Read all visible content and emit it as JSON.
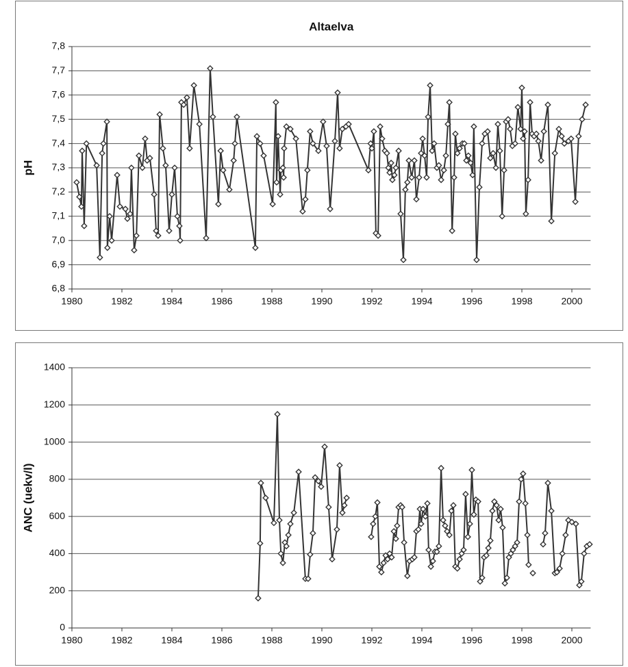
{
  "chart_data": [
    {
      "type": "line",
      "title": "Altaelva",
      "ylabel": "pH",
      "color": "#333333",
      "grid": true,
      "xlim": [
        1980,
        2000.75
      ],
      "xticks": [
        1980,
        1982,
        1984,
        1986,
        1988,
        1990,
        1992,
        1994,
        1996,
        1998,
        2000
      ],
      "ylim": [
        6.8,
        7.8
      ],
      "yticks": [
        {
          "value": 6.8,
          "label": "6,8"
        },
        {
          "value": 6.9,
          "label": "6,9"
        },
        {
          "value": 7.0,
          "label": "7,0"
        },
        {
          "value": 7.1,
          "label": "7,1"
        },
        {
          "value": 7.2,
          "label": "7,2"
        },
        {
          "value": 7.3,
          "label": "7,3"
        },
        {
          "value": 7.4,
          "label": "7,4"
        },
        {
          "value": 7.5,
          "label": "7,5"
        },
        {
          "value": 7.6,
          "label": "7,6"
        },
        {
          "value": 7.7,
          "label": "7,7"
        },
        {
          "value": 7.8,
          "label": "7,8"
        }
      ],
      "x": [
        1980.19,
        1980.3,
        1980.38,
        1980.41,
        1980.49,
        1980.58,
        1980.99,
        1981.12,
        1981.21,
        1981.26,
        1981.4,
        1981.42,
        1981.51,
        1981.59,
        1981.81,
        1981.92,
        1982.14,
        1982.22,
        1982.33,
        1982.38,
        1982.49,
        1982.58,
        1982.68,
        1982.82,
        1982.93,
        1983.01,
        1983.12,
        1983.29,
        1983.37,
        1983.45,
        1983.51,
        1983.64,
        1983.75,
        1983.89,
        1984.0,
        1984.11,
        1984.22,
        1984.3,
        1984.33,
        1984.38,
        1984.47,
        1984.6,
        1984.71,
        1984.88,
        1985.1,
        1985.37,
        1985.53,
        1985.64,
        1985.86,
        1985.95,
        1986.05,
        1986.3,
        1986.47,
        1986.52,
        1986.6,
        1987.34,
        1987.4,
        1987.53,
        1987.67,
        1988.03,
        1988.16,
        1988.19,
        1988.25,
        1988.33,
        1988.36,
        1988.44,
        1988.47,
        1988.49,
        1988.58,
        1988.74,
        1988.96,
        1989.23,
        1989.34,
        1989.42,
        1989.53,
        1989.64,
        1989.86,
        1990.05,
        1990.19,
        1990.33,
        1990.52,
        1990.63,
        1990.71,
        1990.82,
        1990.96,
        1991.07,
        1991.86,
        1991.95,
        1992.0,
        1992.08,
        1992.16,
        1992.25,
        1992.33,
        1992.41,
        1992.52,
        1992.6,
        1992.66,
        1992.71,
        1992.77,
        1992.82,
        1992.9,
        1992.96,
        1993.07,
        1993.15,
        1993.26,
        1993.34,
        1993.42,
        1993.48,
        1993.59,
        1993.7,
        1993.78,
        1993.89,
        1993.97,
        1994.03,
        1994.11,
        1994.19,
        1994.25,
        1994.33,
        1994.41,
        1994.49,
        1994.6,
        1994.68,
        1994.77,
        1994.88,
        1994.96,
        1995.04,
        1995.1,
        1995.21,
        1995.29,
        1995.34,
        1995.42,
        1995.51,
        1995.62,
        1995.7,
        1995.78,
        1995.86,
        1995.95,
        1996.03,
        1996.08,
        1996.19,
        1996.3,
        1996.41,
        1996.52,
        1996.63,
        1996.74,
        1996.85,
        1996.96,
        1997.04,
        1997.12,
        1997.21,
        1997.29,
        1997.37,
        1997.45,
        1997.53,
        1997.62,
        1997.73,
        1997.84,
        1997.95,
        1998.0,
        1998.05,
        1998.11,
        1998.16,
        1998.25,
        1998.33,
        1998.41,
        1998.49,
        1998.58,
        1998.66,
        1998.77,
        1998.88,
        1999.04,
        1999.18,
        1999.32,
        1999.48,
        1999.59,
        1999.7,
        1999.86,
        1999.97,
        2000.14,
        2000.27,
        2000.41,
        2000.55
      ],
      "values": [
        7.24,
        7.18,
        7.14,
        7.37,
        7.06,
        7.4,
        7.31,
        6.93,
        7.36,
        7.4,
        7.49,
        6.97,
        7.1,
        7.0,
        7.27,
        7.14,
        7.13,
        7.09,
        7.11,
        7.3,
        6.96,
        7.02,
        7.35,
        7.3,
        7.42,
        7.33,
        7.34,
        7.19,
        7.04,
        7.02,
        7.52,
        7.38,
        7.31,
        7.04,
        7.19,
        7.3,
        7.1,
        7.06,
        7.0,
        7.57,
        7.56,
        7.59,
        7.38,
        7.64,
        7.48,
        7.01,
        7.71,
        7.51,
        7.15,
        7.37,
        7.29,
        7.21,
        7.33,
        7.4,
        7.51,
        6.97,
        7.43,
        7.4,
        7.35,
        7.15,
        7.57,
        7.24,
        7.43,
        7.19,
        7.29,
        7.3,
        7.26,
        7.38,
        7.47,
        7.46,
        7.42,
        7.12,
        7.17,
        7.29,
        7.45,
        7.4,
        7.37,
        7.49,
        7.39,
        7.13,
        7.41,
        7.61,
        7.38,
        7.46,
        7.47,
        7.48,
        7.29,
        7.4,
        7.38,
        7.45,
        7.03,
        7.02,
        7.47,
        7.42,
        7.37,
        7.36,
        7.3,
        7.28,
        7.32,
        7.25,
        7.27,
        7.3,
        7.37,
        7.11,
        6.92,
        7.21,
        7.24,
        7.33,
        7.26,
        7.33,
        7.17,
        7.26,
        7.36,
        7.42,
        7.35,
        7.26,
        7.51,
        7.64,
        7.37,
        7.4,
        7.3,
        7.31,
        7.25,
        7.29,
        7.35,
        7.48,
        7.57,
        7.04,
        7.26,
        7.44,
        7.36,
        7.38,
        7.4,
        7.4,
        7.33,
        7.35,
        7.32,
        7.27,
        7.47,
        6.92,
        7.22,
        7.4,
        7.44,
        7.45,
        7.34,
        7.36,
        7.3,
        7.48,
        7.37,
        7.1,
        7.29,
        7.49,
        7.5,
        7.46,
        7.39,
        7.4,
        7.55,
        7.46,
        7.63,
        7.42,
        7.45,
        7.11,
        7.25,
        7.57,
        7.44,
        7.43,
        7.44,
        7.41,
        7.33,
        7.45,
        7.56,
        7.08,
        7.36,
        7.46,
        7.43,
        7.4,
        7.41,
        7.42,
        7.16,
        7.43,
        7.5,
        7.56
      ]
    },
    {
      "type": "line",
      "ylabel": "ANC (uekv/l)",
      "color": "#333333",
      "grid": true,
      "xlim": [
        1980,
        2000.75
      ],
      "xticks": [
        1980,
        1982,
        1984,
        1986,
        1988,
        1990,
        1992,
        1994,
        1996,
        1998,
        2000
      ],
      "ylim": [
        0,
        1400
      ],
      "yticks": [
        0,
        200,
        400,
        600,
        800,
        1000,
        1200,
        1400
      ],
      "x": [
        1987.45,
        1987.53,
        1987.56,
        1987.75,
        1988.08,
        1988.22,
        1988.3,
        1988.36,
        1988.44,
        1988.52,
        1988.58,
        1988.66,
        1988.74,
        1988.88,
        1989.07,
        1989.34,
        1989.45,
        1989.53,
        1989.64,
        1989.73,
        1989.86,
        1989.97,
        1990.11,
        1990.27,
        1990.41,
        1990.6,
        1990.71,
        1990.82,
        1990.9,
        1990.99,
        null,
        1991.97,
        1992.05,
        1992.14,
        1992.22,
        1992.3,
        1992.38,
        1992.47,
        1992.55,
        1992.63,
        1992.71,
        1992.79,
        1992.88,
        1992.96,
        1993.01,
        1993.07,
        1993.15,
        1993.21,
        1993.29,
        1993.42,
        1993.51,
        1993.62,
        1993.7,
        1993.78,
        1993.86,
        1993.92,
        1993.97,
        1994.05,
        1994.14,
        1994.22,
        1994.27,
        1994.36,
        1994.44,
        1994.52,
        1994.6,
        1994.68,
        1994.77,
        1994.85,
        1994.93,
        1995.01,
        1995.1,
        1995.18,
        1995.26,
        1995.34,
        1995.42,
        1995.51,
        1995.59,
        1995.67,
        1995.75,
        1995.84,
        1995.92,
        1996.0,
        1996.08,
        1996.16,
        1996.25,
        1996.33,
        1996.41,
        1996.49,
        1996.58,
        1996.66,
        1996.74,
        1996.82,
        1996.9,
        1996.99,
        1997.07,
        1997.15,
        1997.23,
        1997.32,
        1997.4,
        1997.48,
        1997.56,
        1997.64,
        1997.73,
        1997.81,
        1997.89,
        1997.97,
        1998.05,
        1998.14,
        1998.22,
        1998.27,
        null,
        1998.44,
        null,
        1998.85,
        1998.93,
        1999.04,
        1999.18,
        1999.32,
        1999.4,
        1999.51,
        1999.62,
        1999.75,
        1999.86,
        2000.0,
        2000.16,
        2000.3,
        2000.38,
        2000.49,
        2000.6,
        2000.71
      ],
      "values": [
        160,
        455,
        780,
        700,
        565,
        1150,
        580,
        400,
        350,
        460,
        440,
        500,
        560,
        620,
        840,
        265,
        265,
        395,
        510,
        810,
        790,
        760,
        975,
        650,
        370,
        530,
        875,
        620,
        660,
        700,
        null,
        490,
        560,
        600,
        675,
        330,
        300,
        350,
        390,
        370,
        400,
        380,
        520,
        480,
        550,
        650,
        660,
        650,
        460,
        280,
        360,
        370,
        380,
        520,
        530,
        640,
        560,
        640,
        600,
        670,
        420,
        330,
        360,
        410,
        410,
        440,
        860,
        580,
        550,
        520,
        500,
        630,
        660,
        330,
        320,
        370,
        400,
        420,
        720,
        490,
        560,
        850,
        610,
        690,
        680,
        250,
        270,
        380,
        390,
        430,
        470,
        630,
        680,
        660,
        580,
        640,
        540,
        240,
        270,
        380,
        400,
        420,
        440,
        460,
        680,
        800,
        830,
        670,
        500,
        340,
        null,
        295,
        null,
        450,
        510,
        780,
        630,
        295,
        300,
        320,
        400,
        500,
        580,
        570,
        560,
        230,
        250,
        400,
        440,
        450
      ]
    }
  ]
}
